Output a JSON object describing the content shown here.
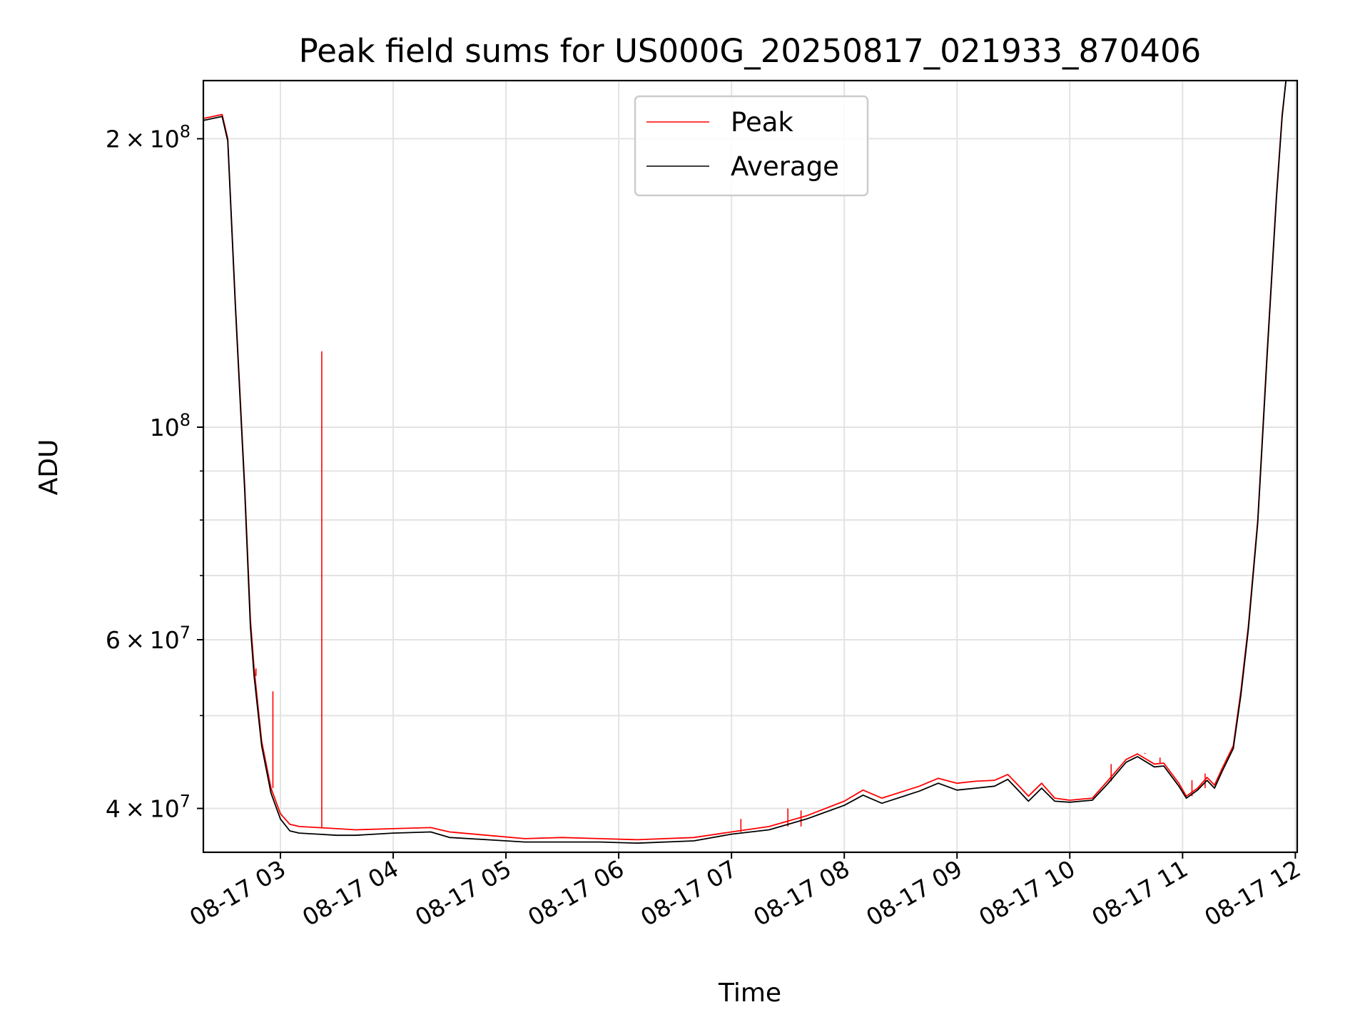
{
  "chart_data": {
    "type": "line",
    "title": "Peak field sums for US000G_20250817_021933_870406",
    "xlabel": "Time",
    "ylabel": "ADU",
    "y_scale": "log",
    "grid": true,
    "legend_position": "upper-center",
    "xlim": [
      "08-17 02:19",
      "08-17 12:01"
    ],
    "ylim": [
      36000000,
      230000000
    ],
    "x_ticks": [
      {
        "t": "08-17 03:00",
        "label": "08-17 03"
      },
      {
        "t": "08-17 04:00",
        "label": "08-17 04"
      },
      {
        "t": "08-17 05:00",
        "label": "08-17 05"
      },
      {
        "t": "08-17 06:00",
        "label": "08-17 06"
      },
      {
        "t": "08-17 07:00",
        "label": "08-17 07"
      },
      {
        "t": "08-17 08:00",
        "label": "08-17 08"
      },
      {
        "t": "08-17 09:00",
        "label": "08-17 09"
      },
      {
        "t": "08-17 10:00",
        "label": "08-17 10"
      },
      {
        "t": "08-17 11:00",
        "label": "08-17 11"
      },
      {
        "t": "08-17 12:00",
        "label": "08-17 12"
      }
    ],
    "y_ticks": [
      {
        "value": 40000000,
        "base": "4",
        "exp": "7"
      },
      {
        "value": 60000000,
        "base": "6",
        "exp": "7"
      },
      {
        "value": 100000000,
        "base": "",
        "exp": "8"
      },
      {
        "value": 200000000,
        "base": "2",
        "exp": "8"
      }
    ],
    "y_minor_ticks": [
      50000000,
      70000000,
      80000000,
      90000000
    ],
    "series": [
      {
        "name": "Peak",
        "color": "#ff0000",
        "points": [
          [
            "08-17 02:19",
            210000000
          ],
          [
            "08-17 02:29",
            212000000
          ],
          [
            "08-17 02:32",
            200000000
          ],
          [
            "08-17 02:36",
            135000000
          ],
          [
            "08-17 02:41",
            87000000
          ],
          [
            "08-17 02:44",
            63000000
          ],
          [
            "08-17 02:46",
            56000000
          ],
          [
            "08-17 02:50",
            47000000
          ],
          [
            "08-17 02:55",
            42000000
          ],
          [
            "08-17 03:00",
            39500000
          ],
          [
            "08-17 03:05",
            38500000
          ],
          [
            "08-17 03:10",
            38300000
          ],
          [
            "08-17 03:20",
            38200000
          ],
          [
            "08-17 03:30",
            38100000
          ],
          [
            "08-17 03:40",
            38000000
          ],
          [
            "08-17 04:00",
            38100000
          ],
          [
            "08-17 04:20",
            38200000
          ],
          [
            "08-17 04:30",
            37800000
          ],
          [
            "08-17 04:50",
            37500000
          ],
          [
            "08-17 05:10",
            37200000
          ],
          [
            "08-17 05:30",
            37300000
          ],
          [
            "08-17 05:50",
            37200000
          ],
          [
            "08-17 06:10",
            37100000
          ],
          [
            "08-17 06:40",
            37300000
          ],
          [
            "08-17 07:00",
            37800000
          ],
          [
            "08-17 07:20",
            38300000
          ],
          [
            "08-17 07:40",
            39300000
          ],
          [
            "08-17 08:00",
            40700000
          ],
          [
            "08-17 08:10",
            41800000
          ],
          [
            "08-17 08:20",
            41000000
          ],
          [
            "08-17 08:40",
            42200000
          ],
          [
            "08-17 08:50",
            43000000
          ],
          [
            "08-17 09:00",
            42500000
          ],
          [
            "08-17 09:10",
            42700000
          ],
          [
            "08-17 09:20",
            42800000
          ],
          [
            "08-17 09:27",
            43400000
          ],
          [
            "08-17 09:32",
            42400000
          ],
          [
            "08-17 09:38",
            41200000
          ],
          [
            "08-17 09:45",
            42500000
          ],
          [
            "08-17 09:52",
            41000000
          ],
          [
            "08-17 10:00",
            40800000
          ],
          [
            "08-17 10:12",
            41000000
          ],
          [
            "08-17 10:20",
            42700000
          ],
          [
            "08-17 10:30",
            45000000
          ],
          [
            "08-17 10:36",
            45600000
          ],
          [
            "08-17 10:45",
            44500000
          ],
          [
            "08-17 10:50",
            44600000
          ],
          [
            "08-17 10:58",
            42500000
          ],
          [
            "08-17 11:02",
            41200000
          ],
          [
            "08-17 11:08",
            42000000
          ],
          [
            "08-17 11:13",
            43100000
          ],
          [
            "08-17 11:17",
            42300000
          ],
          [
            "08-17 11:21",
            44000000
          ],
          [
            "08-17 11:27",
            46500000
          ],
          [
            "08-17 11:31",
            53000000
          ],
          [
            "08-17 11:35",
            62000000
          ],
          [
            "08-17 11:40",
            80000000
          ],
          [
            "08-17 11:45",
            120000000
          ],
          [
            "08-17 11:50",
            175000000
          ],
          [
            "08-17 11:53",
            212000000
          ],
          [
            "08-17 11:55",
            232000000
          ]
        ],
        "spikes": [
          [
            "08-17 02:47",
            55000000
          ],
          [
            "08-17 02:56",
            53000000
          ],
          [
            "08-17 03:22",
            120000000
          ],
          [
            "08-17 07:05",
            39000000
          ],
          [
            "08-17 07:30",
            40000000
          ],
          [
            "08-17 07:37",
            39800000
          ],
          [
            "08-17 10:22",
            44500000
          ],
          [
            "08-17 10:40",
            45700000
          ],
          [
            "08-17 10:48",
            45200000
          ],
          [
            "08-17 11:05",
            42800000
          ],
          [
            "08-17 11:12",
            43500000
          ]
        ]
      },
      {
        "name": "Average",
        "color": "#000000",
        "points": [
          [
            "08-17 02:19",
            209000000
          ],
          [
            "08-17 02:29",
            211000000
          ],
          [
            "08-17 02:32",
            199000000
          ],
          [
            "08-17 02:36",
            134000000
          ],
          [
            "08-17 02:41",
            86000000
          ],
          [
            "08-17 02:44",
            62000000
          ],
          [
            "08-17 02:46",
            55000000
          ],
          [
            "08-17 02:50",
            46500000
          ],
          [
            "08-17 02:55",
            41500000
          ],
          [
            "08-17 03:00",
            39000000
          ],
          [
            "08-17 03:05",
            37900000
          ],
          [
            "08-17 03:10",
            37700000
          ],
          [
            "08-17 03:20",
            37600000
          ],
          [
            "08-17 03:30",
            37500000
          ],
          [
            "08-17 03:40",
            37500000
          ],
          [
            "08-17 04:00",
            37700000
          ],
          [
            "08-17 04:20",
            37800000
          ],
          [
            "08-17 04:30",
            37300000
          ],
          [
            "08-17 04:50",
            37100000
          ],
          [
            "08-17 05:10",
            36900000
          ],
          [
            "08-17 05:30",
            36900000
          ],
          [
            "08-17 05:50",
            36900000
          ],
          [
            "08-17 06:10",
            36800000
          ],
          [
            "08-17 06:40",
            37000000
          ],
          [
            "08-17 07:00",
            37600000
          ],
          [
            "08-17 07:20",
            38000000
          ],
          [
            "08-17 07:40",
            39000000
          ],
          [
            "08-17 08:00",
            40300000
          ],
          [
            "08-17 08:10",
            41300000
          ],
          [
            "08-17 08:20",
            40500000
          ],
          [
            "08-17 08:40",
            41700000
          ],
          [
            "08-17 08:50",
            42500000
          ],
          [
            "08-17 09:00",
            41800000
          ],
          [
            "08-17 09:10",
            42000000
          ],
          [
            "08-17 09:20",
            42200000
          ],
          [
            "08-17 09:27",
            42900000
          ],
          [
            "08-17 09:32",
            41900000
          ],
          [
            "08-17 09:38",
            40700000
          ],
          [
            "08-17 09:45",
            42000000
          ],
          [
            "08-17 09:52",
            40700000
          ],
          [
            "08-17 10:00",
            40600000
          ],
          [
            "08-17 10:12",
            40800000
          ],
          [
            "08-17 10:20",
            42400000
          ],
          [
            "08-17 10:30",
            44700000
          ],
          [
            "08-17 10:36",
            45300000
          ],
          [
            "08-17 10:45",
            44200000
          ],
          [
            "08-17 10:50",
            44300000
          ],
          [
            "08-17 10:58",
            42200000
          ],
          [
            "08-17 11:02",
            41000000
          ],
          [
            "08-17 11:08",
            41800000
          ],
          [
            "08-17 11:13",
            42800000
          ],
          [
            "08-17 11:17",
            42000000
          ],
          [
            "08-17 11:21",
            43700000
          ],
          [
            "08-17 11:27",
            46200000
          ],
          [
            "08-17 11:31",
            52500000
          ],
          [
            "08-17 11:35",
            61500000
          ],
          [
            "08-17 11:40",
            79500000
          ],
          [
            "08-17 11:45",
            119000000
          ],
          [
            "08-17 11:50",
            174000000
          ],
          [
            "08-17 11:53",
            211000000
          ],
          [
            "08-17 11:55",
            231000000
          ]
        ]
      }
    ]
  }
}
